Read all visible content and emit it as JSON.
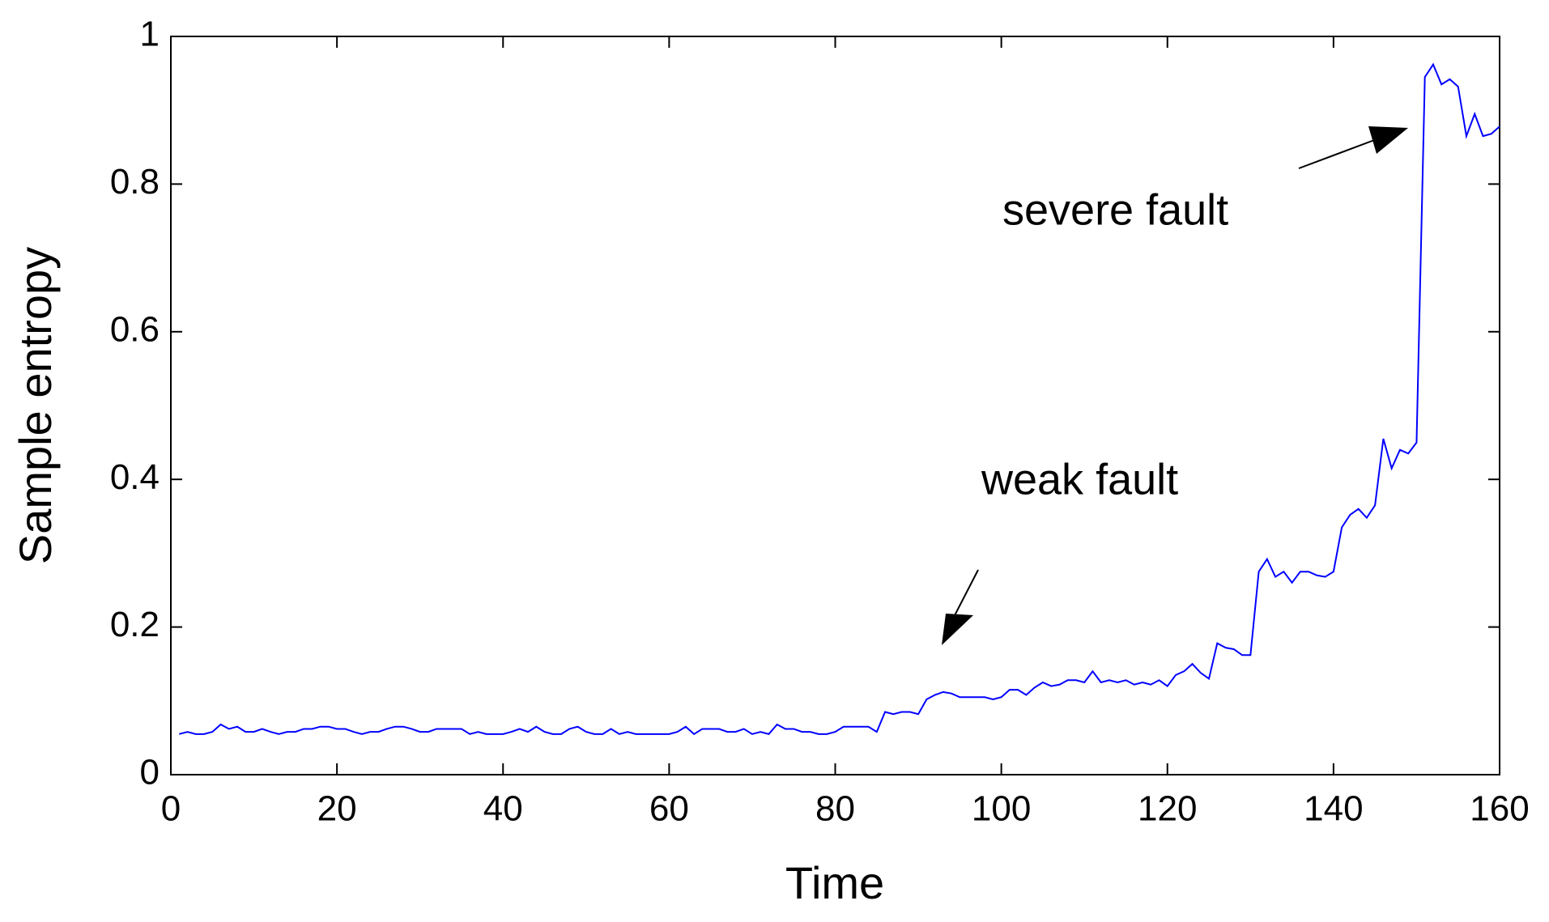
{
  "chart_data": {
    "type": "line",
    "xlabel": "Time",
    "ylabel": "Sample entropy",
    "annotations": [
      "weak fault",
      "severe fault"
    ],
    "x": [
      1,
      2,
      3,
      4,
      5,
      6,
      7,
      8,
      9,
      10,
      11,
      12,
      13,
      14,
      15,
      16,
      17,
      18,
      19,
      20,
      21,
      22,
      23,
      24,
      25,
      26,
      27,
      28,
      29,
      30,
      31,
      32,
      33,
      34,
      35,
      36,
      37,
      38,
      39,
      40,
      41,
      42,
      43,
      44,
      45,
      46,
      47,
      48,
      49,
      50,
      51,
      52,
      53,
      54,
      55,
      56,
      57,
      58,
      59,
      60,
      61,
      62,
      63,
      64,
      65,
      66,
      67,
      68,
      69,
      70,
      71,
      72,
      73,
      74,
      75,
      76,
      77,
      78,
      79,
      80,
      81,
      82,
      83,
      84,
      85,
      86,
      87,
      88,
      89,
      90,
      91,
      92,
      93,
      94,
      95,
      96,
      97,
      98,
      99,
      100,
      101,
      102,
      103,
      104,
      105,
      106,
      107,
      108,
      109,
      110,
      111,
      112,
      113,
      114,
      115,
      116,
      117,
      118,
      119,
      120,
      121,
      122,
      123,
      124,
      125,
      126,
      127,
      128,
      129,
      130,
      131,
      132,
      133,
      134,
      135,
      136,
      137,
      138,
      139,
      140,
      141,
      142,
      143,
      144,
      145,
      146,
      147,
      148,
      149,
      150,
      151,
      152,
      153,
      154,
      155,
      156,
      157,
      158,
      159,
      160
    ],
    "series": [
      {
        "color": "#0000ff",
        "values": [
          0.055,
          0.058,
          0.055,
          0.055,
          0.058,
          0.068,
          0.062,
          0.065,
          0.058,
          0.058,
          0.062,
          0.058,
          0.055,
          0.058,
          0.058,
          0.062,
          0.062,
          0.065,
          0.065,
          0.062,
          0.062,
          0.058,
          0.055,
          0.058,
          0.058,
          0.062,
          0.065,
          0.065,
          0.062,
          0.058,
          0.058,
          0.062,
          0.062,
          0.062,
          0.062,
          0.055,
          0.058,
          0.055,
          0.055,
          0.055,
          0.058,
          0.062,
          0.058,
          0.065,
          0.058,
          0.055,
          0.055,
          0.062,
          0.065,
          0.058,
          0.055,
          0.055,
          0.062,
          0.055,
          0.058,
          0.055,
          0.055,
          0.055,
          0.055,
          0.055,
          0.058,
          0.065,
          0.055,
          0.062,
          0.062,
          0.062,
          0.058,
          0.058,
          0.062,
          0.055,
          0.058,
          0.055,
          0.068,
          0.062,
          0.062,
          0.058,
          0.058,
          0.055,
          0.055,
          0.058,
          0.065,
          0.065,
          0.065,
          0.065,
          0.058,
          0.085,
          0.082,
          0.085,
          0.085,
          0.082,
          0.102,
          0.108,
          0.112,
          0.11,
          0.105,
          0.105,
          0.105,
          0.105,
          0.102,
          0.105,
          0.115,
          0.115,
          0.108,
          0.118,
          0.125,
          0.12,
          0.122,
          0.128,
          0.128,
          0.125,
          0.14,
          0.125,
          0.128,
          0.125,
          0.128,
          0.122,
          0.125,
          0.122,
          0.128,
          0.12,
          0.135,
          0.14,
          0.15,
          0.138,
          0.13,
          0.178,
          0.172,
          0.17,
          0.162,
          0.162,
          0.275,
          0.292,
          0.268,
          0.275,
          0.26,
          0.275,
          0.275,
          0.27,
          0.268,
          0.275,
          0.335,
          0.352,
          0.36,
          0.348,
          0.365,
          0.455,
          0.415,
          0.44,
          0.435,
          0.45,
          0.945,
          0.962,
          0.935,
          0.942,
          0.932,
          0.865,
          0.895,
          0.865,
          0.868,
          0.878
        ]
      }
    ],
    "xlim": [
      0,
      160
    ],
    "xticks": [
      0,
      20,
      40,
      60,
      80,
      100,
      120,
      140,
      160
    ],
    "ylim": [
      0,
      1
    ],
    "yticks": [
      0,
      0.2,
      0.4,
      0.6,
      0.8,
      1
    ],
    "grid": false
  }
}
